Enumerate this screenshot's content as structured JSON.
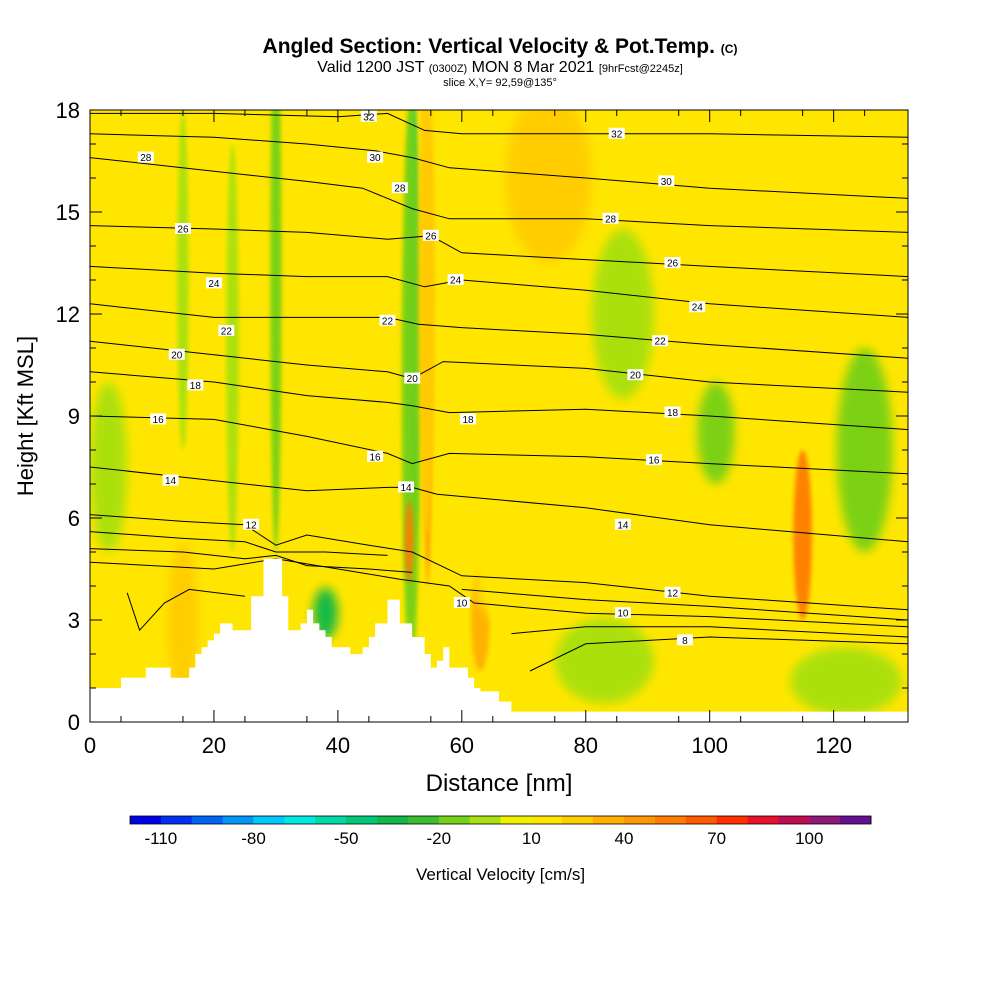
{
  "title": {
    "main": "Angled Section: Vertical Velocity & Pot.Temp.",
    "main_unit": "(C)",
    "valid_prefix": "Valid 1200 JST",
    "valid_utc": "(0300Z)",
    "valid_date": "MON 8 Mar 2021",
    "forecast": "[9hrFcst@2245z]",
    "slice": "slice X,Y= 92,59@135°"
  },
  "chart_data": {
    "type": "heatmap",
    "title": "Angled Section: Vertical Velocity & Pot.Temp. (C)",
    "xlabel": "Distance [nm]",
    "ylabel": "Height [Kft MSL]",
    "xlim": [
      0,
      132
    ],
    "ylim": [
      0,
      18
    ],
    "xticks": [
      0,
      20,
      40,
      60,
      80,
      100,
      120
    ],
    "yticks": [
      0,
      3,
      6,
      9,
      12,
      15,
      18
    ],
    "colorbar": {
      "label": "Vertical Velocity [cm/s]",
      "ticks": [
        -110,
        -80,
        -50,
        -20,
        10,
        40,
        70,
        100
      ],
      "bounds": [
        -120,
        120
      ],
      "step": 10,
      "colors": [
        "#0000e6",
        "#0030f0",
        "#0064f5",
        "#0096f8",
        "#00c8f8",
        "#00e8e0",
        "#00d8a8",
        "#00c878",
        "#10b848",
        "#3cbc30",
        "#74d018",
        "#a8e010",
        "#f0f000",
        "#ffe600",
        "#ffcc00",
        "#ffb000",
        "#ff9800",
        "#ff7c00",
        "#ff5a00",
        "#ff3000",
        "#e8102c",
        "#c00c50",
        "#901878",
        "#601090"
      ]
    },
    "terrain": {
      "x": [
        0,
        0,
        4,
        4,
        5,
        5,
        9,
        9,
        13,
        13,
        15,
        15,
        16,
        16,
        17,
        17,
        18,
        18,
        19,
        19,
        20,
        20,
        21,
        21,
        23,
        23,
        26,
        26,
        28,
        28,
        31,
        31,
        32,
        32,
        34,
        34,
        35,
        35,
        36,
        36,
        37,
        37,
        38,
        38,
        39,
        39,
        42,
        42,
        44,
        44,
        45,
        45,
        46,
        46,
        48,
        48,
        50,
        50,
        52,
        52,
        54,
        54,
        55,
        55,
        56,
        56,
        57,
        57,
        58,
        58,
        61,
        61,
        62,
        62,
        63,
        63,
        66,
        66,
        68,
        68,
        71,
        71,
        132,
        132
      ],
      "y": [
        0,
        1.0,
        1.0,
        1.0,
        1.0,
        1.3,
        1.3,
        1.6,
        1.6,
        1.3,
        1.3,
        1.3,
        1.3,
        1.6,
        1.6,
        2.0,
        2.0,
        2.2,
        2.2,
        2.4,
        2.4,
        2.6,
        2.6,
        2.9,
        2.9,
        2.7,
        2.7,
        3.7,
        3.7,
        4.8,
        4.8,
        3.7,
        3.7,
        2.7,
        2.7,
        2.9,
        2.9,
        3.3,
        3.3,
        2.9,
        2.9,
        2.7,
        2.7,
        2.5,
        2.5,
        2.2,
        2.2,
        2.0,
        2.0,
        2.2,
        2.2,
        2.5,
        2.5,
        2.9,
        2.9,
        3.6,
        3.6,
        2.9,
        2.9,
        2.5,
        2.5,
        2.0,
        2.0,
        1.6,
        1.6,
        1.8,
        1.8,
        2.2,
        2.2,
        1.6,
        1.6,
        1.3,
        1.3,
        1.0,
        1.0,
        0.9,
        0.9,
        0.6,
        0.6,
        0.3,
        0.3,
        0.3,
        0.3,
        0
      ]
    },
    "velocity_features": [
      {
        "x": 52.2,
        "y": 12,
        "width": 1.6,
        "height": 13,
        "value": -50
      },
      {
        "x": 51.8,
        "y": 10,
        "width": 3.0,
        "height": 17,
        "value": -20
      },
      {
        "x": 54.5,
        "y": 11,
        "width": 1.3,
        "height": 14,
        "value": 40
      },
      {
        "x": 54.3,
        "y": 13,
        "width": 2.6,
        "height": 15,
        "value": 20
      },
      {
        "x": 51.5,
        "y": 5.3,
        "width": 1.3,
        "height": 2.4,
        "value": 50
      },
      {
        "x": 15,
        "y": 3.0,
        "width": 5,
        "height": 4.5,
        "value": 25
      },
      {
        "x": 63,
        "y": 3.0,
        "width": 3,
        "height": 3,
        "value": 30
      },
      {
        "x": 74,
        "y": 16,
        "width": 14,
        "height": 5,
        "value": 20
      },
      {
        "x": 110,
        "y": 15,
        "width": 16,
        "height": 7,
        "value": 15
      },
      {
        "x": 115,
        "y": 5.5,
        "width": 3,
        "height": 5,
        "value": 50
      },
      {
        "x": 125,
        "y": 8,
        "width": 9,
        "height": 6,
        "value": -20
      },
      {
        "x": 101,
        "y": 8.5,
        "width": 6,
        "height": 3,
        "value": -15
      },
      {
        "x": 30,
        "y": 13,
        "width": 1.8,
        "height": 16,
        "value": -15
      },
      {
        "x": 15,
        "y": 13,
        "width": 1.8,
        "height": 10,
        "value": -10
      },
      {
        "x": 23,
        "y": 11,
        "width": 2.0,
        "height": 12,
        "value": -10
      },
      {
        "x": 38,
        "y": 3.2,
        "width": 4,
        "height": 1.5,
        "value": -40
      },
      {
        "x": 3,
        "y": 7.5,
        "width": 6,
        "height": 5,
        "value": -10
      },
      {
        "x": 83,
        "y": 1.8,
        "width": 16,
        "height": 2.5,
        "value": -10
      },
      {
        "x": 122,
        "y": 1.2,
        "width": 18,
        "height": 2.0,
        "value": -10
      },
      {
        "x": 86,
        "y": 12,
        "width": 10,
        "height": 5,
        "value": -10
      },
      {
        "x": 66,
        "y": 4.5,
        "width": 8,
        "height": 3,
        "value": 10
      }
    ],
    "isentropes": [
      {
        "label": "32",
        "points": [
          [
            0,
            17.9
          ],
          [
            20,
            17.9
          ],
          [
            40,
            17.8
          ],
          [
            48,
            17.9
          ],
          [
            54,
            17.4
          ],
          [
            60,
            17.3
          ],
          [
            80,
            17.3
          ],
          [
            100,
            17.3
          ],
          [
            132,
            17.2
          ]
        ],
        "labels_at": [
          [
            45,
            17.8
          ],
          [
            85,
            17.3
          ]
        ]
      },
      {
        "label": "30",
        "points": [
          [
            0,
            17.3
          ],
          [
            20,
            17.2
          ],
          [
            35,
            17.0
          ],
          [
            46,
            16.8
          ],
          [
            52,
            16.6
          ],
          [
            58,
            16.3
          ],
          [
            80,
            16.0
          ],
          [
            100,
            15.7
          ],
          [
            132,
            15.4
          ]
        ],
        "labels_at": [
          [
            46,
            16.6
          ],
          [
            93,
            15.9
          ]
        ]
      },
      {
        "label": "28",
        "points": [
          [
            0,
            16.6
          ],
          [
            20,
            16.2
          ],
          [
            35,
            15.9
          ],
          [
            44,
            15.7
          ],
          [
            52,
            15.1
          ],
          [
            58,
            14.8
          ],
          [
            80,
            14.8
          ],
          [
            100,
            14.6
          ],
          [
            132,
            14.4
          ]
        ],
        "labels_at": [
          [
            9,
            16.6
          ],
          [
            50,
            15.7
          ],
          [
            84,
            14.8
          ]
        ]
      },
      {
        "label": "26",
        "points": [
          [
            0,
            14.6
          ],
          [
            20,
            14.5
          ],
          [
            35,
            14.4
          ],
          [
            48,
            14.2
          ],
          [
            55,
            14.3
          ],
          [
            60,
            13.8
          ],
          [
            80,
            13.6
          ],
          [
            100,
            13.4
          ],
          [
            132,
            13.1
          ]
        ],
        "labels_at": [
          [
            15,
            14.5
          ],
          [
            55,
            14.3
          ],
          [
            94,
            13.5
          ]
        ]
      },
      {
        "label": "24",
        "points": [
          [
            0,
            13.4
          ],
          [
            20,
            13.2
          ],
          [
            35,
            13.1
          ],
          [
            48,
            13.1
          ],
          [
            54,
            12.8
          ],
          [
            60,
            13.0
          ],
          [
            80,
            12.7
          ],
          [
            100,
            12.3
          ],
          [
            132,
            11.9
          ]
        ],
        "labels_at": [
          [
            20,
            12.9
          ],
          [
            59,
            13.0
          ],
          [
            98,
            12.2
          ]
        ]
      },
      {
        "label": "22",
        "points": [
          [
            0,
            12.3
          ],
          [
            20,
            11.9
          ],
          [
            35,
            11.9
          ],
          [
            48,
            11.9
          ],
          [
            53,
            11.7
          ],
          [
            60,
            11.6
          ],
          [
            80,
            11.4
          ],
          [
            100,
            11.1
          ],
          [
            132,
            10.7
          ]
        ],
        "labels_at": [
          [
            22,
            11.5
          ],
          [
            48,
            11.8
          ],
          [
            92,
            11.2
          ]
        ]
      },
      {
        "label": "20",
        "points": [
          [
            0,
            11.2
          ],
          [
            20,
            10.8
          ],
          [
            35,
            10.5
          ],
          [
            48,
            10.3
          ],
          [
            52,
            10.1
          ],
          [
            57,
            10.6
          ],
          [
            80,
            10.4
          ],
          [
            100,
            10.0
          ],
          [
            132,
            9.7
          ]
        ],
        "labels_at": [
          [
            14,
            10.8
          ],
          [
            52,
            10.1
          ],
          [
            88,
            10.2
          ]
        ]
      },
      {
        "label": "18",
        "points": [
          [
            0,
            10.3
          ],
          [
            20,
            10.0
          ],
          [
            35,
            9.6
          ],
          [
            48,
            9.4
          ],
          [
            52,
            9.3
          ],
          [
            58,
            9.1
          ],
          [
            80,
            9.2
          ],
          [
            100,
            9.0
          ],
          [
            132,
            8.6
          ]
        ],
        "labels_at": [
          [
            17,
            9.9
          ],
          [
            61,
            8.9
          ],
          [
            94,
            9.1
          ]
        ]
      },
      {
        "label": "16",
        "points": [
          [
            0,
            9.0
          ],
          [
            20,
            8.9
          ],
          [
            35,
            8.4
          ],
          [
            48,
            7.9
          ],
          [
            52,
            7.6
          ],
          [
            58,
            7.9
          ],
          [
            80,
            7.8
          ],
          [
            100,
            7.6
          ],
          [
            132,
            7.3
          ]
        ],
        "labels_at": [
          [
            11,
            8.9
          ],
          [
            46,
            7.8
          ],
          [
            91,
            7.7
          ]
        ]
      },
      {
        "label": "14",
        "points": [
          [
            0,
            7.5
          ],
          [
            20,
            7.1
          ],
          [
            35,
            6.8
          ],
          [
            48,
            6.9
          ],
          [
            52,
            6.9
          ],
          [
            56,
            6.7
          ],
          [
            80,
            6.3
          ],
          [
            100,
            5.8
          ],
          [
            132,
            5.3
          ]
        ],
        "labels_at": [
          [
            13,
            7.1
          ],
          [
            51,
            6.9
          ],
          [
            86,
            5.8
          ]
        ]
      },
      {
        "label": "12",
        "points": [
          [
            0,
            6.1
          ],
          [
            15,
            5.9
          ],
          [
            25,
            5.8
          ],
          [
            30,
            5.2
          ],
          [
            35,
            5.5
          ],
          [
            45,
            5.2
          ],
          [
            52,
            5.0
          ],
          [
            60,
            4.3
          ],
          [
            80,
            4.1
          ],
          [
            100,
            3.7
          ],
          [
            132,
            3.3
          ]
        ],
        "labels_at": [
          [
            26,
            5.8
          ],
          [
            94,
            3.8
          ]
        ]
      },
      {
        "label": "10",
        "points": [
          [
            0,
            4.7
          ],
          [
            20,
            4.5
          ],
          [
            30,
            4.8
          ],
          [
            50,
            4.2
          ],
          [
            58,
            4.0
          ],
          [
            62,
            3.5
          ],
          [
            80,
            3.2
          ],
          [
            100,
            3.1
          ],
          [
            132,
            2.8
          ]
        ],
        "labels_at": [
          [
            60,
            3.5
          ],
          [
            86,
            3.2
          ]
        ]
      },
      {
        "label": "8",
        "points": [
          [
            71,
            1.5
          ],
          [
            80,
            2.3
          ],
          [
            100,
            2.5
          ],
          [
            132,
            2.3
          ]
        ],
        "labels_at": [
          [
            96,
            2.4
          ]
        ]
      }
    ],
    "contour_extra_black_lines": [
      [
        [
          0,
          5.1
        ],
        [
          15,
          5.0
        ],
        [
          25,
          4.8
        ],
        [
          30,
          4.9
        ],
        [
          35,
          4.6
        ],
        [
          45,
          4.5
        ],
        [
          52,
          4.4
        ]
      ],
      [
        [
          0,
          5.6
        ],
        [
          15,
          5.4
        ],
        [
          25,
          5.3
        ],
        [
          30,
          5.0
        ],
        [
          38,
          5.0
        ],
        [
          48,
          4.9
        ]
      ],
      [
        [
          60,
          3.9
        ],
        [
          80,
          3.6
        ],
        [
          100,
          3.4
        ],
        [
          132,
          3.0
        ]
      ],
      [
        [
          68,
          2.6
        ],
        [
          80,
          2.8
        ],
        [
          100,
          2.8
        ],
        [
          132,
          2.5
        ]
      ],
      [
        [
          6,
          3.8
        ],
        [
          8,
          2.7
        ],
        [
          12,
          3.5
        ],
        [
          16,
          3.9
        ],
        [
          25,
          3.7
        ]
      ]
    ]
  }
}
